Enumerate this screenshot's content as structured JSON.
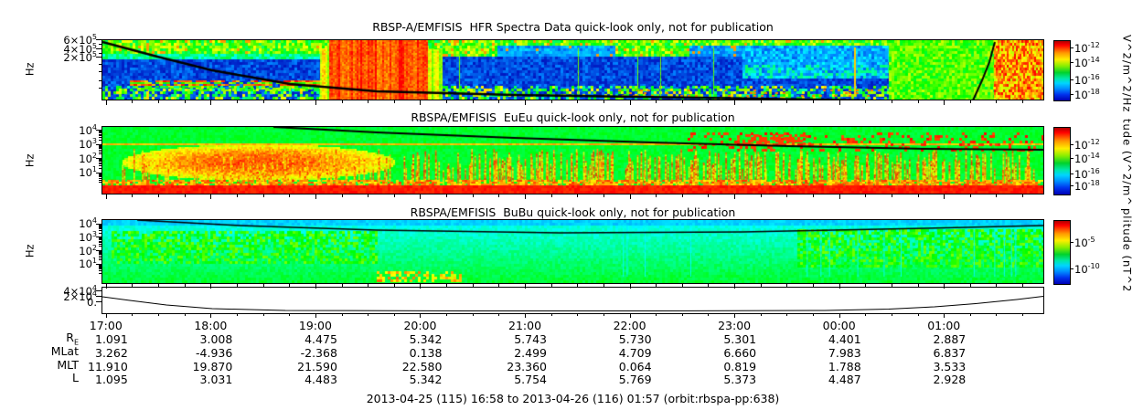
{
  "panel1": {
    "title": "RBSP-A/EMFISIS  HFR Spectra Data quick-look only, not for publication",
    "y_unit": "Hz",
    "yticks": [
      {
        "b": "6×10",
        "e": "5"
      },
      {
        "b": "4×10",
        "e": "5"
      },
      {
        "b": "2×10",
        "e": "5"
      }
    ],
    "cb": {
      "ticks": [
        {
          "b": "10",
          "e": "-12"
        },
        {
          "b": "10",
          "e": "-14"
        },
        {
          "b": "10",
          "e": "-16"
        },
        {
          "b": "10",
          "e": "-18"
        }
      ],
      "unit": "V^2/m^2/Hz"
    }
  },
  "panel2": {
    "title": "RBSPA/EMFISIS  EuEu quick-look only, not for publication",
    "y_unit": "Hz",
    "yticks": [
      {
        "b": "10",
        "e": "4"
      },
      {
        "b": "10",
        "e": "3"
      },
      {
        "b": "10",
        "e": "2"
      },
      {
        "b": "10",
        "e": "1"
      }
    ],
    "cb": {
      "ticks": [
        {
          "b": "10",
          "e": "-12"
        },
        {
          "b": "10",
          "e": "-14"
        },
        {
          "b": "10",
          "e": "-16"
        },
        {
          "b": "10",
          "e": "-18"
        }
      ],
      "unit": "tude (V^2/m^"
    }
  },
  "panel3": {
    "title": "RBSPA/EMFISIS  BuBu quick-look only, not for publication",
    "y_unit": "Hz",
    "yticks": [
      {
        "b": "10",
        "e": "4"
      },
      {
        "b": "10",
        "e": "3"
      },
      {
        "b": "10",
        "e": "2"
      },
      {
        "b": "10",
        "e": "1"
      }
    ],
    "cb": {
      "ticks": [
        {
          "b": "10",
          "e": "-5"
        },
        {
          "b": "10",
          "e": "-10"
        }
      ],
      "unit": "plitude (nT^2"
    }
  },
  "panel4": {
    "yticks": [
      {
        "b": "4×10",
        "e": "4"
      },
      {
        "b": "2×10",
        "e": "4"
      },
      {
        "b": "0.",
        "e": ""
      }
    ]
  },
  "time_axis": {
    "labels": [
      "17:00",
      "18:00",
      "19:00",
      "20:00",
      "21:00",
      "22:00",
      "23:00",
      "00:00",
      "01:00"
    ]
  },
  "ephemeris": {
    "rows": [
      {
        "label": {
          "base": "R",
          "sub": "E"
        },
        "values": [
          "1.091",
          "3.008",
          "4.475",
          "5.342",
          "5.743",
          "5.730",
          "5.301",
          "4.401",
          "2.887"
        ]
      },
      {
        "label": {
          "base": "MLat",
          "sub": ""
        },
        "values": [
          "3.262",
          "-4.936",
          "-2.368",
          "0.138",
          "2.499",
          "4.709",
          "6.660",
          "7.983",
          "6.837"
        ]
      },
      {
        "label": {
          "base": "MLT",
          "sub": ""
        },
        "values": [
          "11.910",
          "19.870",
          "21.590",
          "22.580",
          "23.360",
          "0.064",
          "0.819",
          "1.788",
          "3.533"
        ]
      },
      {
        "label": {
          "base": "L",
          "sub": ""
        },
        "values": [
          "1.095",
          "3.031",
          "4.483",
          "5.342",
          "5.754",
          "5.769",
          "5.373",
          "4.487",
          "2.928"
        ]
      }
    ]
  },
  "caption": "2013-04-25 (115) 16:58 to 2013-04-26 (116) 01:57 (orbit:rbspa-pp:638)",
  "chart_data": [
    {
      "type": "heatmap",
      "title": "RBSP-A/EMFISIS  HFR Spectra Data quick-look only, not for publication",
      "ylabel": "Hz",
      "ytick_labels": [
        "6×10^5",
        "4×10^5",
        "2×10^5"
      ],
      "x_range": [
        "16:58",
        "01:57"
      ],
      "colorbar": {
        "tick_labels": [
          "10^-12",
          "10^-14",
          "10^-16",
          "10^-18"
        ],
        "label": "V^2/m^2/Hz"
      },
      "legend_position": "right-colorbar",
      "grid": false
    },
    {
      "type": "heatmap",
      "title": "RBSPA/EMFISIS  EuEu quick-look only, not for publication",
      "ylabel": "Hz",
      "ytick_labels": [
        "10^4",
        "10^3",
        "10^2",
        "10^1"
      ],
      "x_range": [
        "16:58",
        "01:57"
      ],
      "colorbar": {
        "tick_labels": [
          "10^-12",
          "10^-14",
          "10^-16",
          "10^-18"
        ],
        "label": "tude (V^2/m^ (truncated)"
      },
      "legend_position": "right-colorbar",
      "grid": false
    },
    {
      "type": "heatmap",
      "title": "RBSPA/EMFISIS  BuBu quick-look only, not for publication",
      "ylabel": "Hz",
      "ytick_labels": [
        "10^4",
        "10^3",
        "10^2",
        "10^1"
      ],
      "x_range": [
        "16:58",
        "01:57"
      ],
      "colorbar": {
        "tick_labels": [
          "10^-5",
          "10^-10"
        ],
        "label": "plitude (nT^2 (truncated)"
      },
      "legend_position": "right-colorbar",
      "grid": false
    },
    {
      "type": "line",
      "ytick_labels": [
        "4×10^4",
        "2×10^4",
        "0."
      ],
      "x_range": [
        "16:58",
        "01:57"
      ],
      "description": "curve high at left (~2.5×10^4), decays to near 0 by ~17:45, flat near 0, rises after ~00:30 to ~2.5×10^4 at right edge"
    },
    {
      "type": "table",
      "categories": [
        "17:00",
        "18:00",
        "19:00",
        "20:00",
        "21:00",
        "22:00",
        "23:00",
        "00:00",
        "01:00"
      ],
      "series": [
        {
          "name": "RE",
          "values": [
            1.091,
            3.008,
            4.475,
            5.342,
            5.743,
            5.73,
            5.301,
            4.401,
            2.887
          ]
        },
        {
          "name": "MLat",
          "values": [
            3.262,
            -4.936,
            -2.368,
            0.138,
            2.499,
            4.709,
            6.66,
            7.983,
            6.837
          ]
        },
        {
          "name": "MLT",
          "values": [
            11.91,
            19.87,
            21.59,
            22.58,
            23.36,
            0.064,
            0.819,
            1.788,
            3.533
          ]
        },
        {
          "name": "L",
          "values": [
            1.095,
            3.031,
            4.483,
            5.342,
            5.754,
            5.769,
            5.373,
            4.487,
            2.928
          ]
        }
      ],
      "title": "2013-04-25 (115) 16:58 to 2013-04-26 (116) 01:57 (orbit:rbspa-pp:638)"
    }
  ]
}
